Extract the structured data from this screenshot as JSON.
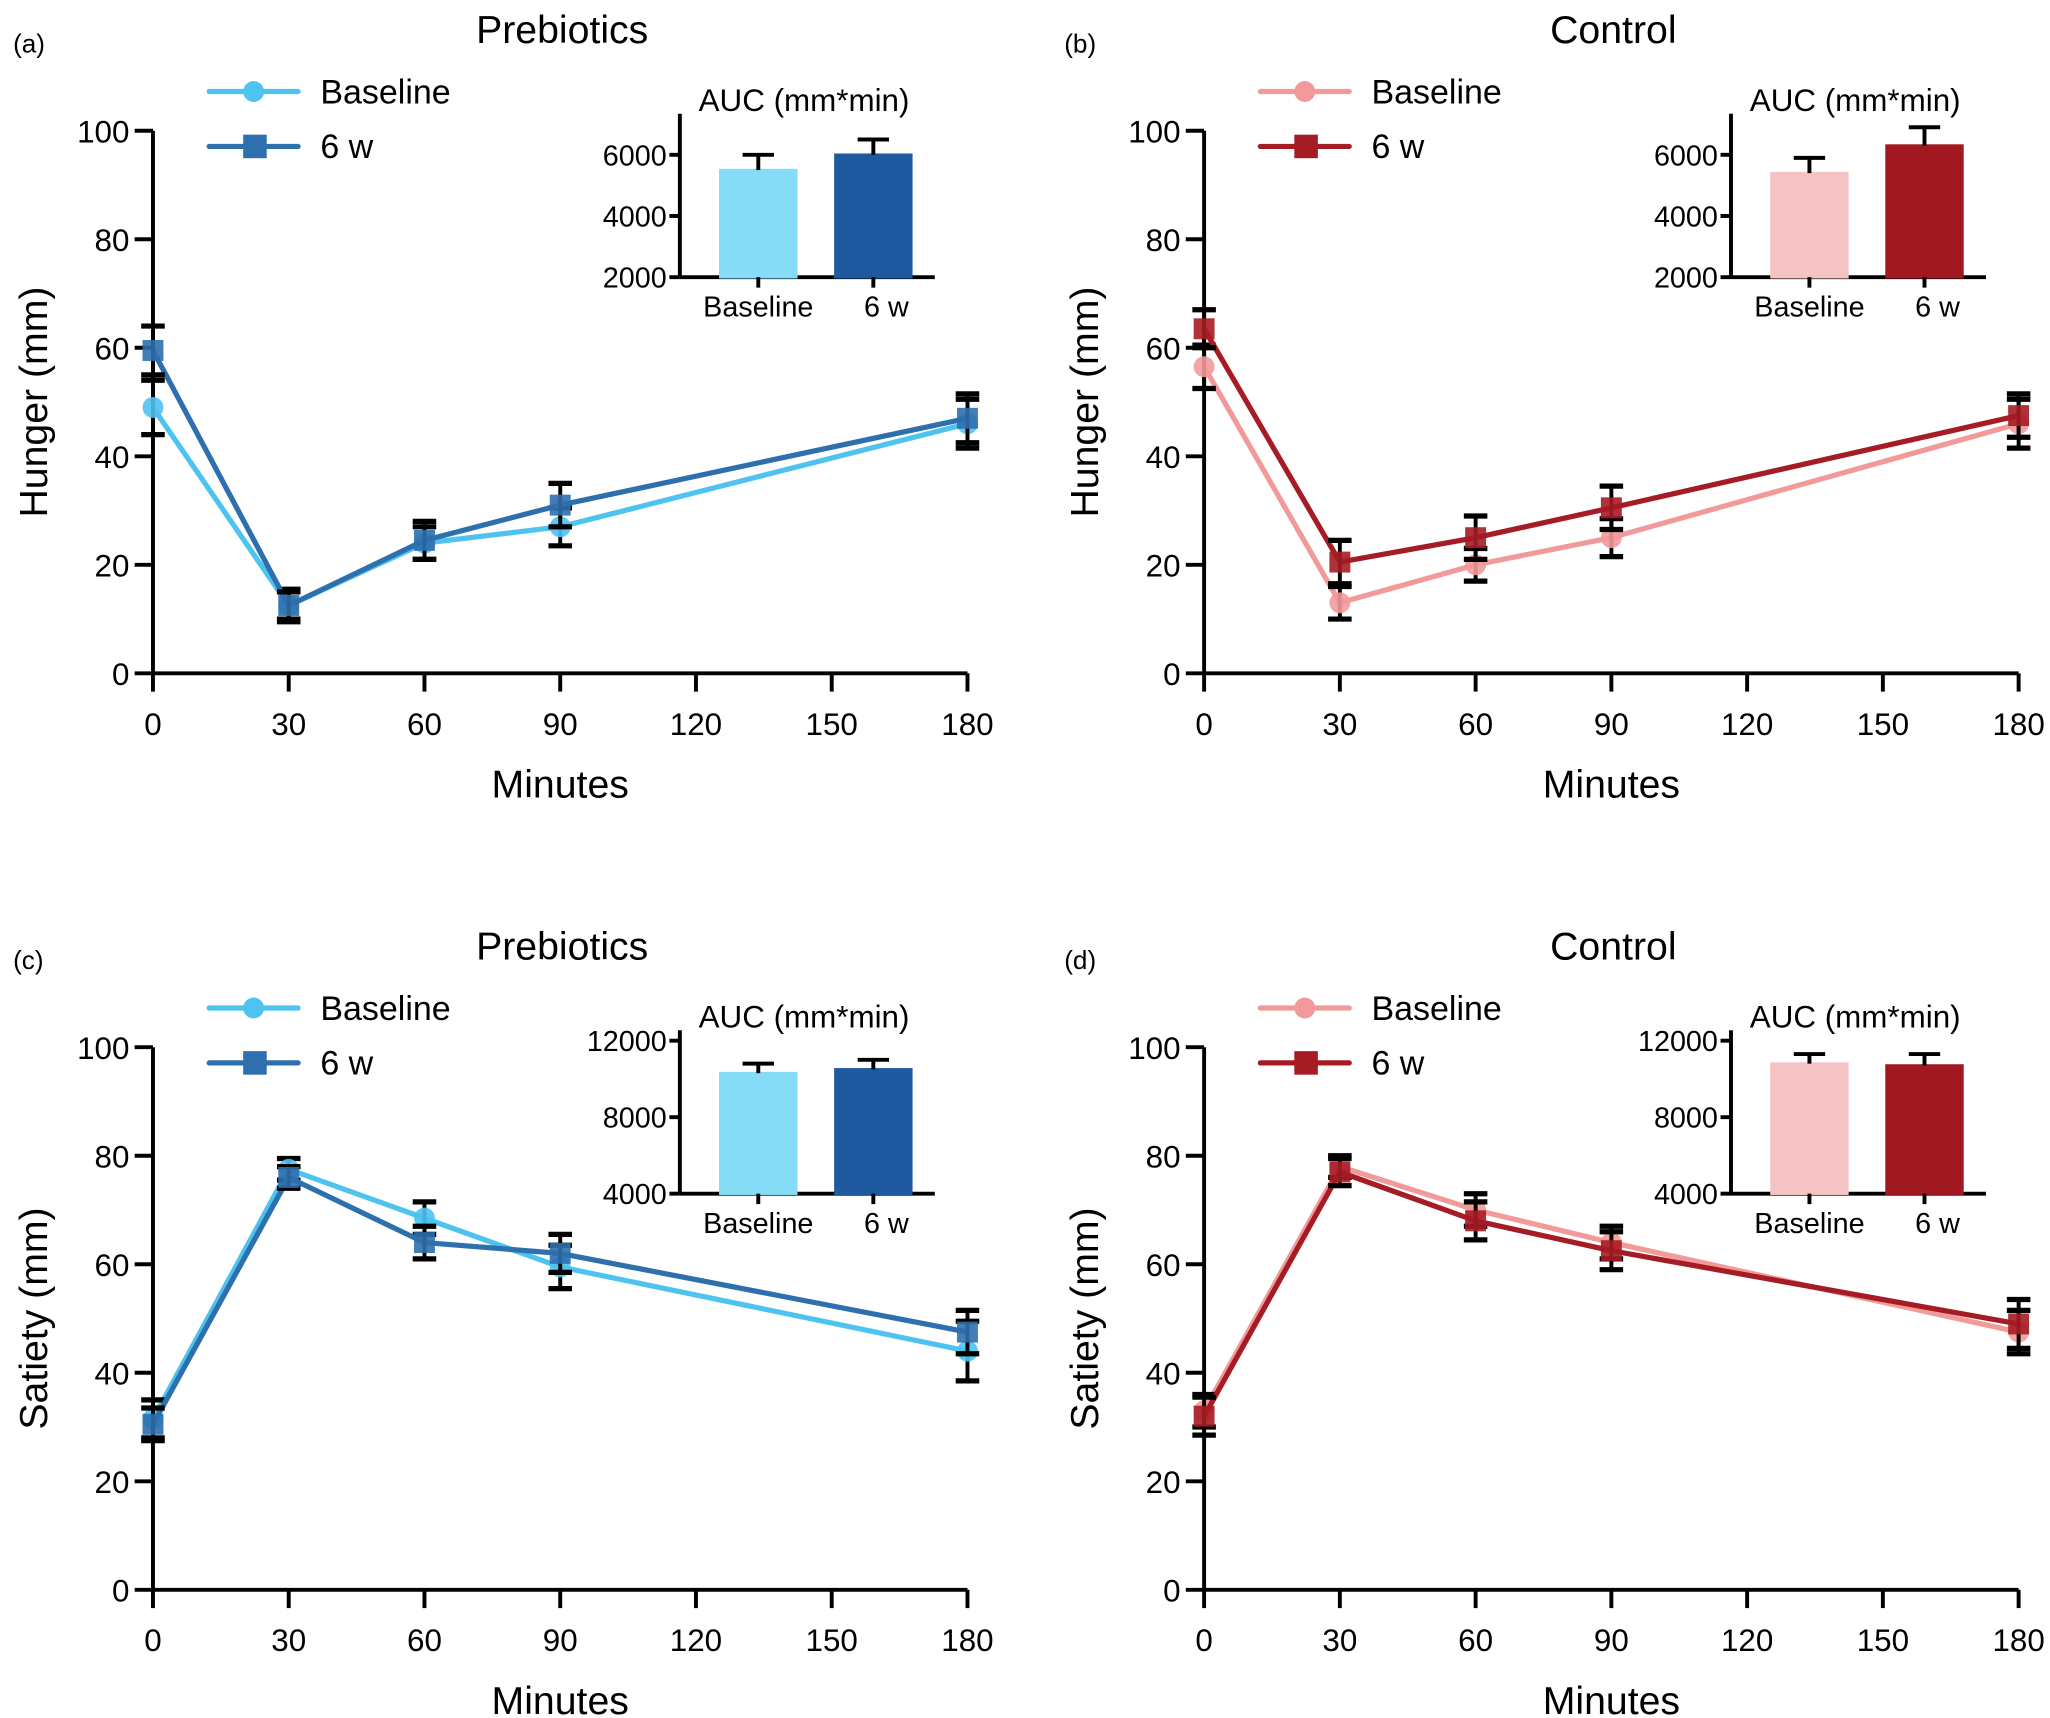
{
  "chart_data": [
    {
      "id": "a",
      "panel_label": "(a)",
      "type": "line",
      "title": "Prebiotics",
      "xlabel": "Minutes",
      "ylabel": "Hunger (mm)",
      "x": [
        0,
        30,
        60,
        90,
        180
      ],
      "xticks": [
        0,
        30,
        60,
        90,
        120,
        150,
        180
      ],
      "xlim": [
        0,
        180
      ],
      "ylim": [
        0,
        100
      ],
      "yticks": [
        0,
        20,
        40,
        60,
        80,
        100
      ],
      "legend": "top-left",
      "series": [
        {
          "name": "Baseline",
          "marker": "circle",
          "color": "#4fc3ef",
          "values": [
            49,
            12.5,
            24,
            27,
            46
          ],
          "err": [
            5,
            3,
            3,
            3.5,
            4.5
          ]
        },
        {
          "name": "6 w",
          "marker": "square",
          "color": "#2e6fad",
          "values": [
            59.5,
            12.5,
            24.5,
            31,
            47
          ],
          "err": [
            4.5,
            2.5,
            3.5,
            4,
            4.5
          ]
        }
      ],
      "inset": {
        "type": "bar",
        "title": "AUC (mm*min)",
        "categories": [
          "Baseline",
          "6 w"
        ],
        "values": [
          5500,
          6000
        ],
        "err": [
          500,
          500
        ],
        "ylim": [
          2000,
          7000
        ],
        "yticks": [
          2000,
          4000,
          6000
        ],
        "colors": [
          "#84dcf6",
          "#1f5aa0"
        ]
      }
    },
    {
      "id": "b",
      "panel_label": "(b)",
      "type": "line",
      "title": "Control",
      "xlabel": "Minutes",
      "ylabel": "Hunger  (mm)",
      "x": [
        0,
        30,
        60,
        90,
        180
      ],
      "xticks": [
        0,
        30,
        60,
        90,
        120,
        150,
        180
      ],
      "xlim": [
        0,
        180
      ],
      "ylim": [
        0,
        100
      ],
      "yticks": [
        0,
        20,
        40,
        60,
        80,
        100
      ],
      "legend": "top-left",
      "series": [
        {
          "name": "Baseline",
          "marker": "circle",
          "color": "#f29a9a",
          "values": [
            56.5,
            13,
            20,
            25,
            46
          ],
          "err": [
            4,
            3,
            3,
            3.5,
            4.5
          ]
        },
        {
          "name": "6 w",
          "marker": "square",
          "color": "#a61c24",
          "values": [
            63.5,
            20.5,
            25,
            30.5,
            47.5
          ],
          "err": [
            3.5,
            4,
            4,
            4,
            4
          ]
        }
      ],
      "inset": {
        "type": "bar",
        "title": "AUC (mm*min)",
        "categories": [
          "Baseline",
          "6 w"
        ],
        "values": [
          5400,
          6300
        ],
        "err": [
          500,
          600
        ],
        "ylim": [
          2000,
          7000
        ],
        "yticks": [
          2000,
          4000,
          6000
        ],
        "colors": [
          "#f5c3c3",
          "#a11820"
        ]
      }
    },
    {
      "id": "c",
      "panel_label": "(c)",
      "type": "line",
      "title": "Prebiotics",
      "xlabel": "Minutes",
      "ylabel": "Satiety (mm)",
      "x": [
        0,
        30,
        60,
        90,
        180
      ],
      "xticks": [
        0,
        30,
        60,
        90,
        120,
        150,
        180
      ],
      "xlim": [
        0,
        180
      ],
      "ylim": [
        0,
        100
      ],
      "yticks": [
        0,
        20,
        40,
        60,
        80,
        100
      ],
      "legend": "top-left",
      "series": [
        {
          "name": "Baseline",
          "marker": "circle",
          "color": "#4fc3ef",
          "values": [
            31.5,
            77.5,
            68.5,
            59.5,
            44
          ],
          "err": [
            3.5,
            2,
            3,
            4,
            5.5
          ]
        },
        {
          "name": "6 w",
          "marker": "square",
          "color": "#2e6fad",
          "values": [
            30.5,
            76,
            64,
            62,
            47.5
          ],
          "err": [
            3,
            2,
            3,
            3.5,
            4
          ]
        }
      ],
      "inset": {
        "type": "bar",
        "title": "AUC (mm*min)",
        "categories": [
          "Baseline",
          "6 w"
        ],
        "values": [
          10300,
          10500
        ],
        "err": [
          500,
          500
        ],
        "ylim": [
          4000,
          12000
        ],
        "yticks": [
          4000,
          8000,
          12000
        ],
        "colors": [
          "#84dcf6",
          "#1f5aa0"
        ]
      }
    },
    {
      "id": "d",
      "panel_label": "(d)",
      "type": "line",
      "title": "Control",
      "xlabel": "Minutes",
      "ylabel": "Satiety  (mm)",
      "x": [
        0,
        30,
        60,
        90,
        180
      ],
      "xticks": [
        0,
        30,
        60,
        90,
        120,
        150,
        180
      ],
      "xlim": [
        0,
        180
      ],
      "ylim": [
        0,
        100
      ],
      "yticks": [
        0,
        20,
        40,
        60,
        80,
        100
      ],
      "legend": "top-left",
      "series": [
        {
          "name": "Baseline",
          "marker": "circle",
          "color": "#f29a9a",
          "values": [
            33,
            78,
            70,
            64,
            47.5
          ],
          "err": [
            3,
            2,
            3,
            3,
            4
          ]
        },
        {
          "name": "6 w",
          "marker": "square",
          "color": "#a61c24",
          "values": [
            32,
            77,
            68,
            62.5,
            49
          ],
          "err": [
            3.5,
            2.5,
            3.5,
            3.5,
            4.5
          ]
        }
      ],
      "inset": {
        "type": "bar",
        "title": "AUC (mm*min)",
        "categories": [
          "Baseline",
          "6 w"
        ],
        "values": [
          10800,
          10700
        ],
        "err": [
          500,
          600
        ],
        "ylim": [
          4000,
          12000
        ],
        "yticks": [
          4000,
          8000,
          12000
        ],
        "colors": [
          "#f5c3c3",
          "#a11820"
        ]
      }
    }
  ]
}
